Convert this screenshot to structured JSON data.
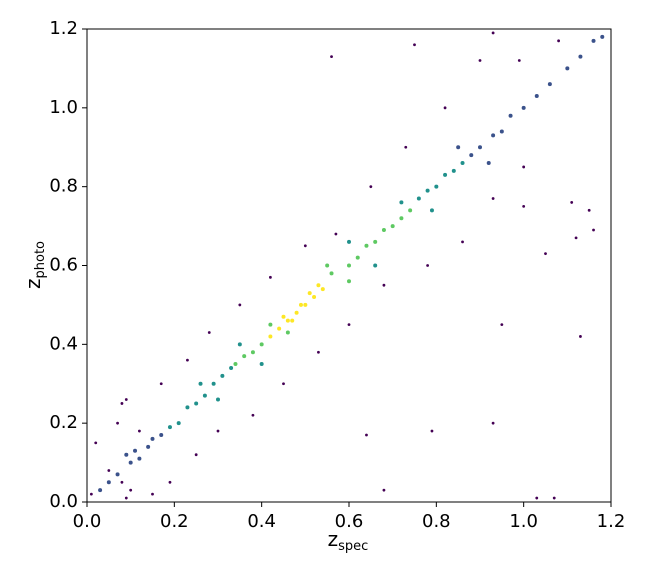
{
  "chart_data": {
    "type": "scatter",
    "xlabel": {
      "symbol": "z",
      "subscript": "spec"
    },
    "ylabel": {
      "symbol": "z",
      "subscript": "photo"
    },
    "xlim": [
      0,
      1.2
    ],
    "ylim": [
      0,
      1.2
    ],
    "xticks": [
      {
        "value": 0,
        "label": "0.0"
      },
      0.2,
      0.4,
      0.6,
      0.8,
      {
        "value": 1,
        "label": "1.0"
      },
      1.2
    ],
    "yticks": [
      {
        "value": 0,
        "label": "0.0"
      },
      0.2,
      0.4,
      0.6,
      0.8,
      {
        "value": 1,
        "label": "1.0"
      },
      1.2
    ],
    "grid": false,
    "series": [
      {
        "color": "#440154",
        "x": [
          0.01,
          0.02,
          0.05,
          0.07,
          0.08,
          0.08,
          0.09,
          0.09,
          0.1,
          0.12,
          0.15,
          0.17,
          0.19,
          0.23,
          0.25,
          0.28,
          0.3,
          0.35,
          0.38,
          0.42,
          0.45,
          0.5,
          0.53,
          0.57,
          0.6,
          0.64,
          0.65,
          0.68,
          0.68,
          0.73,
          0.78,
          0.79,
          0.82,
          0.86,
          0.9,
          0.93,
          0.93,
          0.95,
          0.99,
          1.0,
          1.03,
          1.07,
          1.05,
          1.08,
          1.11,
          1.12,
          1.15,
          1.16,
          0.56,
          0.75,
          0.93,
          1.13,
          1.0
        ],
        "y": [
          0.02,
          0.15,
          0.08,
          0.2,
          0.25,
          0.05,
          0.26,
          0.01,
          0.03,
          0.18,
          0.02,
          0.3,
          0.05,
          0.36,
          0.12,
          0.43,
          0.18,
          0.5,
          0.22,
          0.57,
          0.3,
          0.65,
          0.38,
          0.68,
          0.45,
          0.17,
          0.8,
          0.03,
          0.55,
          0.9,
          0.6,
          0.18,
          1.0,
          0.66,
          1.12,
          0.77,
          0.2,
          0.45,
          1.12,
          0.85,
          0.01,
          0.01,
          0.63,
          1.17,
          0.76,
          0.67,
          0.74,
          0.69,
          1.13,
          1.16,
          1.19,
          0.42,
          0.75
        ]
      },
      {
        "color": "#3b528b",
        "x": [
          0.03,
          0.05,
          0.07,
          0.1,
          0.12,
          0.14,
          0.15,
          0.17,
          0.09,
          0.11,
          0.88,
          0.9,
          0.93,
          0.95,
          0.97,
          1.0,
          1.03,
          1.06,
          1.1,
          1.13,
          1.16,
          1.18,
          0.85,
          0.92
        ],
        "y": [
          0.03,
          0.05,
          0.07,
          0.1,
          0.11,
          0.14,
          0.16,
          0.17,
          0.12,
          0.13,
          0.88,
          0.9,
          0.93,
          0.94,
          0.98,
          1.0,
          1.03,
          1.06,
          1.1,
          1.13,
          1.17,
          1.18,
          0.9,
          0.86
        ]
      },
      {
        "color": "#21918c",
        "x": [
          0.19,
          0.21,
          0.23,
          0.25,
          0.27,
          0.29,
          0.31,
          0.33,
          0.3,
          0.26,
          0.76,
          0.78,
          0.8,
          0.82,
          0.84,
          0.86,
          0.72,
          0.79,
          0.35,
          0.4,
          0.6,
          0.66
        ],
        "y": [
          0.19,
          0.2,
          0.24,
          0.25,
          0.27,
          0.3,
          0.32,
          0.34,
          0.26,
          0.3,
          0.77,
          0.79,
          0.8,
          0.83,
          0.84,
          0.86,
          0.76,
          0.74,
          0.4,
          0.35,
          0.66,
          0.6
        ]
      },
      {
        "color": "#5ec962",
        "x": [
          0.34,
          0.36,
          0.38,
          0.4,
          0.56,
          0.6,
          0.62,
          0.64,
          0.66,
          0.68,
          0.7,
          0.72,
          0.74,
          0.42,
          0.46,
          0.55,
          0.6
        ],
        "y": [
          0.35,
          0.37,
          0.38,
          0.4,
          0.58,
          0.6,
          0.62,
          0.65,
          0.66,
          0.69,
          0.7,
          0.72,
          0.74,
          0.45,
          0.43,
          0.6,
          0.56
        ]
      },
      {
        "color": "#fde725",
        "x": [
          0.42,
          0.44,
          0.46,
          0.48,
          0.5,
          0.52,
          0.54,
          0.45,
          0.49,
          0.51,
          0.53,
          0.47
        ],
        "y": [
          0.42,
          0.44,
          0.46,
          0.48,
          0.5,
          0.52,
          0.54,
          0.47,
          0.5,
          0.53,
          0.55,
          0.46
        ]
      }
    ]
  }
}
